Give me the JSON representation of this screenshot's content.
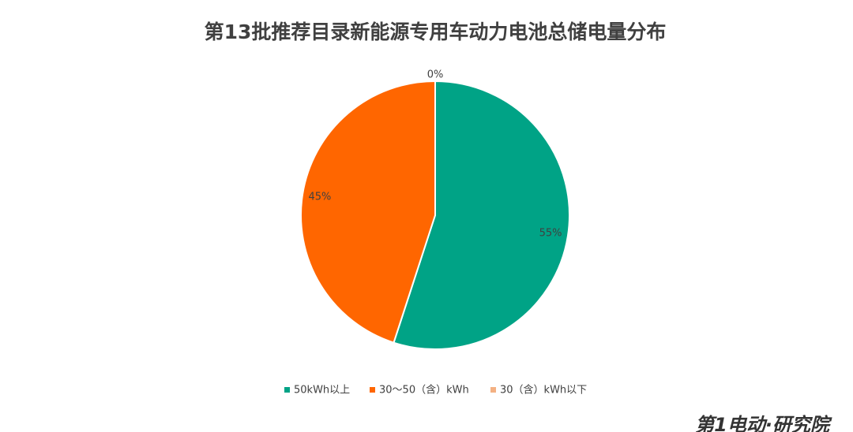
{
  "chart_data": {
    "type": "pie",
    "title": "第13批推荐目录新能源专用车动力电池总储电量分布",
    "categories": [
      "50kWh以上",
      "30～50（含）kWh",
      "30（含）kWh以下"
    ],
    "values": [
      55,
      45,
      0
    ],
    "value_labels": [
      "55%",
      "45%",
      "0%"
    ],
    "colors": [
      "#00a386",
      "#ff6600",
      "#f4b183"
    ],
    "legend": "bottom"
  },
  "watermark": "第1电动·研究院"
}
